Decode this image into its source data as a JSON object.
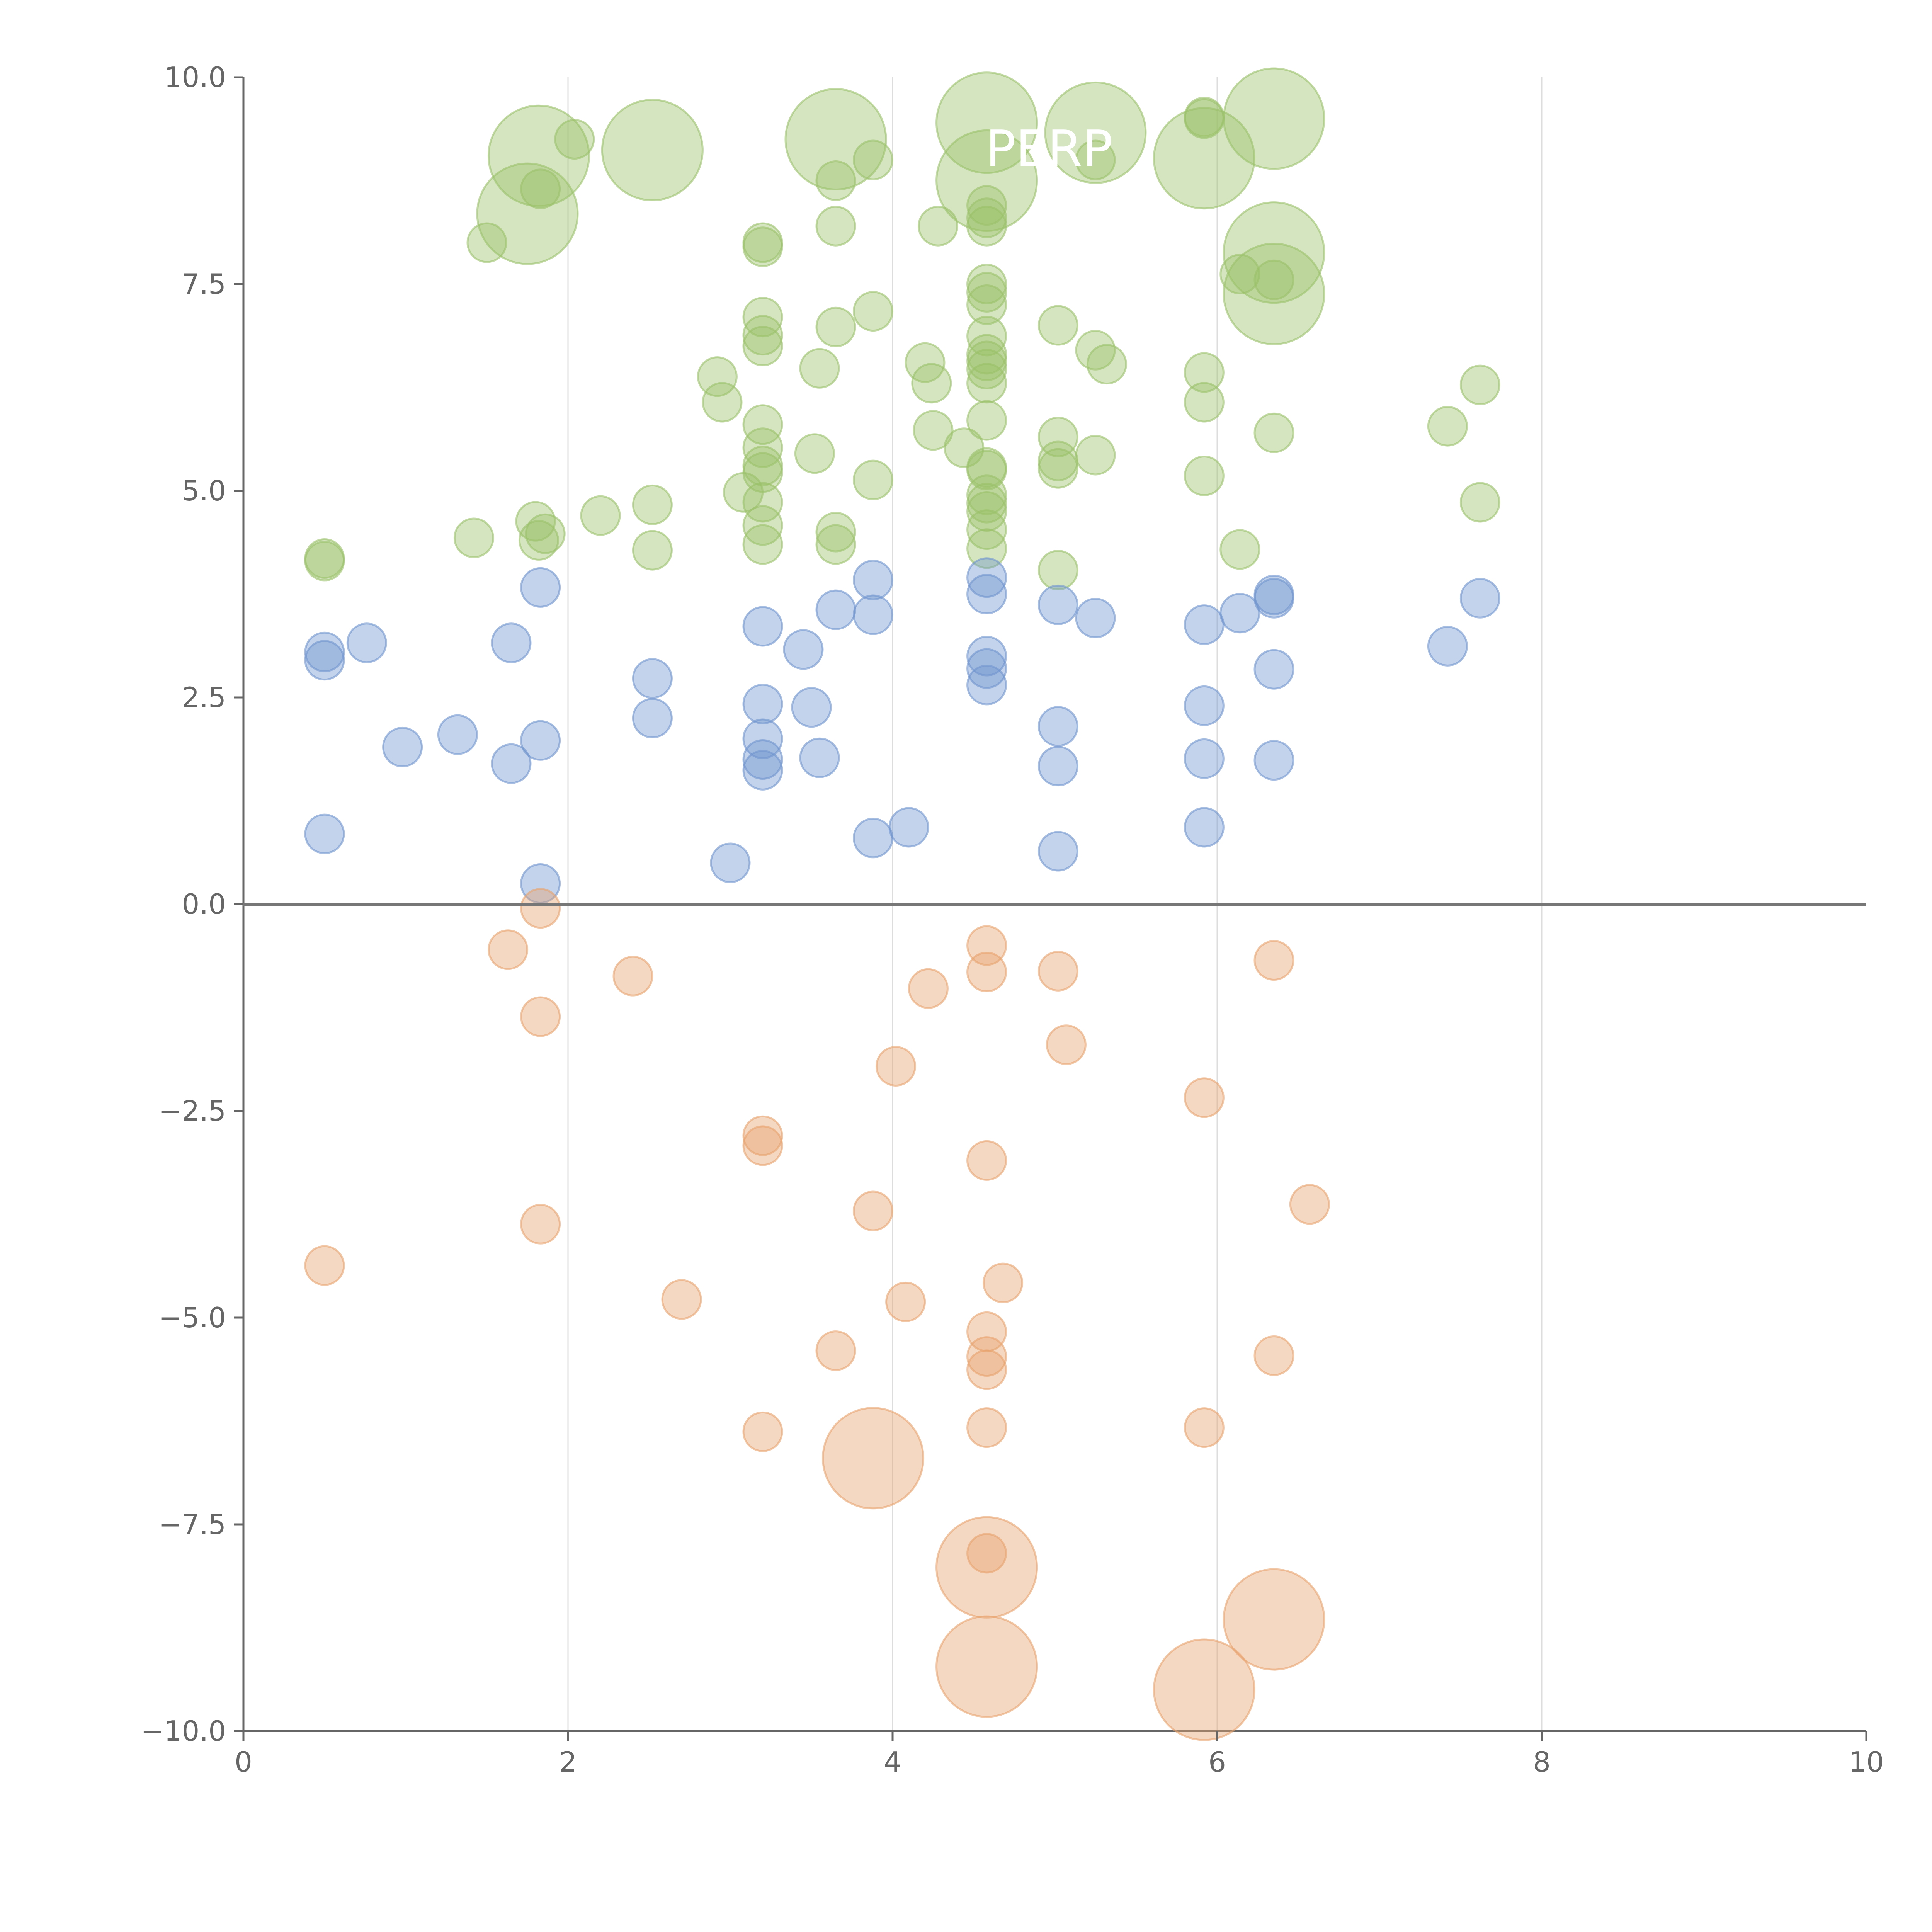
{
  "chart_data": {
    "type": "scatter",
    "title": "",
    "xlabel": "",
    "ylabel": "",
    "xlim": [
      0,
      10
    ],
    "ylim": [
      -10,
      10
    ],
    "x_ticks": [
      {
        "value": 0,
        "label": "0"
      },
      {
        "value": 2,
        "label": "2"
      },
      {
        "value": 4,
        "label": "4"
      },
      {
        "value": 6,
        "label": "6"
      },
      {
        "value": 8,
        "label": "8"
      },
      {
        "value": 10,
        "label": "10"
      }
    ],
    "y_ticks": [
      {
        "value": 10,
        "label": "10.0"
      },
      {
        "value": 7.5,
        "label": "7.5"
      },
      {
        "value": 5,
        "label": "5.0"
      },
      {
        "value": 2.5,
        "label": "2.5"
      },
      {
        "value": 0,
        "label": "0.0"
      },
      {
        "value": -2.5,
        "label": "−2.5"
      },
      {
        "value": -5,
        "label": "−5.0"
      },
      {
        "value": -7.5,
        "label": "−7.5"
      },
      {
        "value": -10,
        "label": "−10.0"
      }
    ],
    "vertical_gridlines": [
      2,
      4,
      6,
      8
    ],
    "zero_line": 0,
    "colors": {
      "green": "#9bc26a",
      "blue": "#6f95cf",
      "orange": "#e8a36e",
      "axis": "#666666",
      "grid": "#dddddd",
      "zero_line": "#777777"
    },
    "series": [
      {
        "name": "green",
        "color": "#9bc26a",
        "points": [
          [
            0.5,
            4.18,
            1
          ],
          [
            0.5,
            4.15,
            1
          ],
          [
            1.42,
            4.43,
            1
          ],
          [
            1.5,
            8.0,
            1
          ],
          [
            1.8,
            4.63,
            1
          ],
          [
            1.82,
            4.4,
            1
          ],
          [
            1.86,
            4.48,
            1
          ],
          [
            1.83,
            8.65,
            1
          ],
          [
            1.75,
            8.35,
            2.6
          ],
          [
            1.82,
            9.05,
            2.6
          ],
          [
            2.04,
            9.25,
            1
          ],
          [
            2.2,
            4.7,
            1
          ],
          [
            2.52,
            4.28,
            1
          ],
          [
            2.52,
            4.83,
            1
          ],
          [
            2.52,
            9.12,
            2.6
          ],
          [
            2.92,
            6.38,
            1
          ],
          [
            2.95,
            6.07,
            1
          ],
          [
            3.08,
            4.98,
            1
          ],
          [
            3.2,
            4.35,
            1
          ],
          [
            3.2,
            4.58,
            1
          ],
          [
            3.2,
            4.86,
            1
          ],
          [
            3.2,
            5.22,
            1
          ],
          [
            3.2,
            5.3,
            1
          ],
          [
            3.2,
            5.52,
            1
          ],
          [
            3.2,
            5.8,
            1
          ],
          [
            3.2,
            6.75,
            1
          ],
          [
            3.2,
            6.88,
            1
          ],
          [
            3.2,
            7.1,
            1
          ],
          [
            3.2,
            7.95,
            1
          ],
          [
            3.2,
            8.0,
            1
          ],
          [
            3.52,
            5.45,
            1
          ],
          [
            3.55,
            6.48,
            1
          ],
          [
            3.65,
            4.35,
            1
          ],
          [
            3.65,
            4.5,
            1
          ],
          [
            3.65,
            6.98,
            1
          ],
          [
            3.65,
            8.2,
            1
          ],
          [
            3.65,
            8.75,
            1
          ],
          [
            3.65,
            9.25,
            2.6
          ],
          [
            3.88,
            5.13,
            1
          ],
          [
            3.88,
            7.17,
            1
          ],
          [
            3.88,
            9.0,
            1
          ],
          [
            4.2,
            6.55,
            1
          ],
          [
            4.24,
            6.3,
            1
          ],
          [
            4.25,
            5.73,
            1
          ],
          [
            4.28,
            8.2,
            1
          ],
          [
            4.44,
            5.52,
            1
          ],
          [
            4.58,
            4.3,
            1
          ],
          [
            4.58,
            4.53,
            1
          ],
          [
            4.58,
            4.75,
            1
          ],
          [
            4.58,
            4.85,
            1
          ],
          [
            4.58,
            4.95,
            1
          ],
          [
            4.58,
            5.25,
            1
          ],
          [
            4.58,
            5.28,
            1
          ],
          [
            4.58,
            5.85,
            1
          ],
          [
            4.58,
            6.3,
            1
          ],
          [
            4.58,
            6.47,
            1
          ],
          [
            4.58,
            6.57,
            1
          ],
          [
            4.58,
            6.65,
            1
          ],
          [
            4.58,
            6.87,
            1
          ],
          [
            4.58,
            7.25,
            1
          ],
          [
            4.58,
            7.4,
            1
          ],
          [
            4.58,
            7.5,
            1
          ],
          [
            4.58,
            8.2,
            1
          ],
          [
            4.58,
            8.3,
            1
          ],
          [
            4.58,
            8.45,
            1
          ],
          [
            4.58,
            8.75,
            2.6
          ],
          [
            4.58,
            9.45,
            2.6
          ],
          [
            5.02,
            4.04,
            1
          ],
          [
            5.02,
            5.27,
            1
          ],
          [
            5.02,
            5.36,
            1
          ],
          [
            5.02,
            5.65,
            1
          ],
          [
            5.02,
            7.0,
            1
          ],
          [
            5.25,
            5.43,
            1
          ],
          [
            5.25,
            6.7,
            1
          ],
          [
            5.25,
            9.0,
            1
          ],
          [
            5.25,
            9.33,
            2.6
          ],
          [
            5.32,
            6.53,
            1
          ],
          [
            5.92,
            5.18,
            1
          ],
          [
            5.92,
            6.07,
            1
          ],
          [
            5.92,
            6.43,
            1
          ],
          [
            5.92,
            9.02,
            2.6
          ],
          [
            5.92,
            9.5,
            1
          ],
          [
            5.92,
            9.52,
            1
          ],
          [
            6.14,
            4.29,
            1
          ],
          [
            6.14,
            7.62,
            1
          ],
          [
            6.35,
            5.7,
            1
          ],
          [
            6.35,
            7.55,
            1
          ],
          [
            6.35,
            7.38,
            2.6
          ],
          [
            6.35,
            7.88,
            2.6
          ],
          [
            6.35,
            9.5,
            2.6
          ],
          [
            7.42,
            5.78,
            1
          ],
          [
            7.62,
            4.86,
            1
          ],
          [
            7.62,
            6.28,
            1
          ]
        ]
      },
      {
        "name": "blue",
        "color": "#6f95cf",
        "points": [
          [
            0.5,
            0.85,
            1
          ],
          [
            0.5,
            2.95,
            1
          ],
          [
            0.5,
            3.05,
            1
          ],
          [
            0.76,
            3.16,
            1
          ],
          [
            0.98,
            1.9,
            1
          ],
          [
            1.32,
            2.05,
            1
          ],
          [
            1.65,
            1.7,
            1
          ],
          [
            1.65,
            3.16,
            1
          ],
          [
            1.83,
            0.25,
            1
          ],
          [
            1.83,
            1.98,
            1
          ],
          [
            1.83,
            3.83,
            1
          ],
          [
            2.52,
            2.25,
            1
          ],
          [
            2.52,
            2.73,
            1
          ],
          [
            3.0,
            0.5,
            1
          ],
          [
            3.2,
            1.62,
            1
          ],
          [
            3.2,
            1.75,
            1
          ],
          [
            3.2,
            2.0,
            1
          ],
          [
            3.2,
            2.42,
            1
          ],
          [
            3.2,
            3.36,
            1
          ],
          [
            3.45,
            3.08,
            1
          ],
          [
            3.5,
            2.38,
            1
          ],
          [
            3.55,
            1.77,
            1
          ],
          [
            3.65,
            3.56,
            1
          ],
          [
            3.88,
            0.8,
            1
          ],
          [
            3.88,
            3.5,
            1
          ],
          [
            3.88,
            3.92,
            1
          ],
          [
            4.1,
            0.93,
            1
          ],
          [
            4.58,
            2.65,
            1
          ],
          [
            4.58,
            2.85,
            1
          ],
          [
            4.58,
            3.0,
            1
          ],
          [
            4.58,
            3.75,
            1
          ],
          [
            4.58,
            3.95,
            1
          ],
          [
            5.02,
            0.64,
            1
          ],
          [
            5.02,
            1.67,
            1
          ],
          [
            5.02,
            2.15,
            1
          ],
          [
            5.02,
            3.62,
            1
          ],
          [
            5.25,
            3.46,
            1
          ],
          [
            5.92,
            0.93,
            1
          ],
          [
            5.92,
            1.76,
            1
          ],
          [
            5.92,
            2.4,
            1
          ],
          [
            5.92,
            3.38,
            1
          ],
          [
            6.14,
            3.52,
            1
          ],
          [
            6.35,
            1.74,
            1
          ],
          [
            6.35,
            2.84,
            1
          ],
          [
            6.35,
            3.7,
            1
          ],
          [
            6.35,
            3.74,
            1
          ],
          [
            7.42,
            3.12,
            1
          ],
          [
            7.62,
            3.7,
            1
          ]
        ]
      },
      {
        "name": "orange",
        "color": "#e8a36e",
        "points": [
          [
            0.5,
            -4.37,
            1
          ],
          [
            1.63,
            -0.55,
            1
          ],
          [
            1.83,
            -0.05,
            1
          ],
          [
            1.83,
            -1.36,
            1
          ],
          [
            1.83,
            -3.87,
            1
          ],
          [
            2.4,
            -0.87,
            1
          ],
          [
            2.7,
            -4.78,
            1
          ],
          [
            3.2,
            -2.8,
            1
          ],
          [
            3.2,
            -2.92,
            1
          ],
          [
            3.2,
            -6.38,
            1
          ],
          [
            3.65,
            -5.4,
            1
          ],
          [
            3.88,
            -3.71,
            1
          ],
          [
            3.88,
            -6.7,
            2.6
          ],
          [
            4.02,
            -1.96,
            1
          ],
          [
            4.08,
            -4.81,
            1
          ],
          [
            4.22,
            -1.02,
            1
          ],
          [
            4.58,
            -0.5,
            1
          ],
          [
            4.58,
            -0.82,
            1
          ],
          [
            4.58,
            -3.1,
            1
          ],
          [
            4.58,
            -5.17,
            1
          ],
          [
            4.58,
            -5.47,
            1
          ],
          [
            4.58,
            -5.63,
            1
          ],
          [
            4.58,
            -6.33,
            1
          ],
          [
            4.58,
            -7.85,
            1
          ],
          [
            4.58,
            -8.02,
            2.6
          ],
          [
            4.58,
            -9.22,
            2.6
          ],
          [
            4.68,
            -4.58,
            1
          ],
          [
            5.02,
            -0.81,
            1
          ],
          [
            5.07,
            -1.7,
            1
          ],
          [
            5.92,
            -2.34,
            1
          ],
          [
            5.92,
            -6.33,
            1
          ],
          [
            5.92,
            -9.5,
            2.6
          ],
          [
            6.35,
            -0.68,
            1
          ],
          [
            6.35,
            -5.46,
            1
          ],
          [
            6.35,
            -8.65,
            2.6
          ],
          [
            6.57,
            -3.63,
            1
          ]
        ]
      }
    ],
    "bubble_labels": [
      "PERP"
    ]
  }
}
